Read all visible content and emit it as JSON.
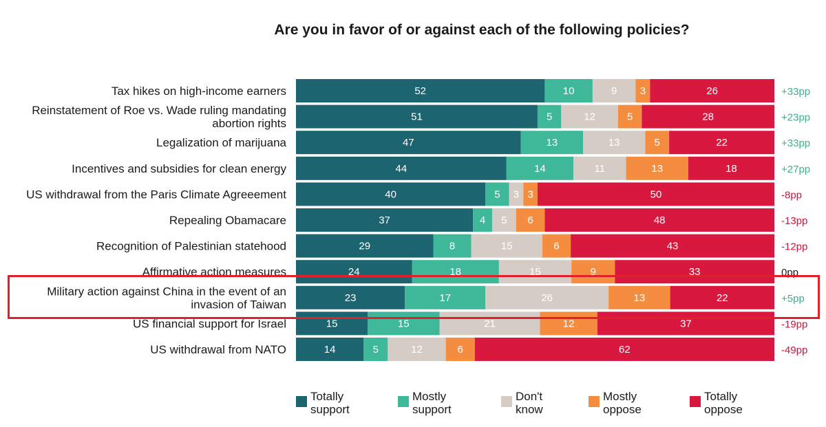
{
  "chart_data": {
    "type": "bar",
    "orientation": "horizontal",
    "stacked": true,
    "title": "Are you in favor of or against each of the following policies?",
    "categories": [
      [
        "Tax hikes on high-income earners"
      ],
      [
        "Reinstatement of Roe vs. Wade ruling mandating",
        "abortion rights"
      ],
      [
        "Legalization of marijuana"
      ],
      [
        "Incentives and subsidies for clean energy"
      ],
      [
        "US withdrawal from the Paris Climate Agreeement"
      ],
      [
        "Repealing Obamacare"
      ],
      [
        "Recognition of Palestinian statehood"
      ],
      [
        "Affirmative action measures"
      ],
      [
        "Military action against China in the event of an",
        "invasion of Taiwan"
      ],
      [
        "US financial support for Israel"
      ],
      [
        "US withdrawal from NATO"
      ]
    ],
    "series": [
      {
        "name": "Totally support",
        "legend": [
          "Totally",
          "support"
        ],
        "color": "#1c6470",
        "values": [
          52,
          51,
          47,
          44,
          40,
          37,
          29,
          24,
          23,
          15,
          14
        ]
      },
      {
        "name": "Mostly support",
        "legend": [
          "Mostly",
          "support"
        ],
        "color": "#3fb799",
        "values": [
          10,
          5,
          13,
          14,
          5,
          4,
          8,
          18,
          17,
          15,
          5
        ]
      },
      {
        "name": "Don't know",
        "legend": [
          "Don't",
          "know"
        ],
        "color": "#d5ccc6",
        "values": [
          9,
          12,
          13,
          11,
          3,
          5,
          15,
          15,
          26,
          21,
          12
        ]
      },
      {
        "name": "Mostly oppose",
        "legend": [
          "Mostly",
          "oppose"
        ],
        "color": "#f58d40",
        "values": [
          3,
          5,
          5,
          13,
          3,
          6,
          6,
          9,
          13,
          12,
          6
        ]
      },
      {
        "name": "Totally oppose",
        "legend": [
          "Totally",
          "oppose"
        ],
        "color": "#d8183f",
        "values": [
          26,
          28,
          22,
          18,
          50,
          48,
          43,
          33,
          22,
          37,
          62
        ]
      }
    ],
    "net": [
      "+33pp",
      "+23pp",
      "+33pp",
      "+27pp",
      "-8pp",
      "-13pp",
      "-12pp",
      "0pp",
      "+5pp",
      "-19pp",
      "-49pp"
    ],
    "net_colors": {
      "positive": "#3fae90",
      "negative": "#c8173c",
      "neutral": "#1a1a1a"
    },
    "highlighted_category_index": 8,
    "highlight_color": "#e0202a",
    "legend_position": "bottom"
  }
}
